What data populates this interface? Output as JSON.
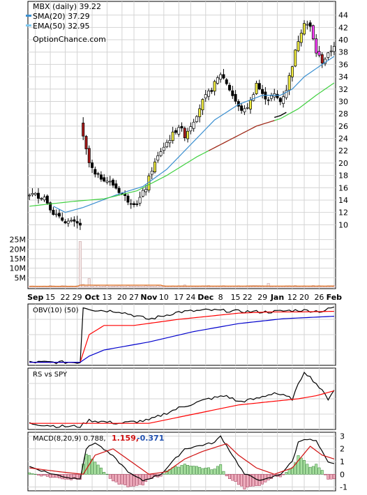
{
  "chart_data": [
    {
      "type": "candlestick",
      "title": "MBX (daily) 39.22",
      "source": "OptionChance.com",
      "legend": [
        {
          "label": "SMA(20) 37.29",
          "color": "#3a8fd0"
        },
        {
          "label": "EMA(50) 32.95",
          "color": "#7ec8f0"
        }
      ],
      "y_ticks": [
        10,
        12,
        14,
        16,
        18,
        20,
        22,
        24,
        26,
        28,
        30,
        32,
        34,
        36,
        38,
        40,
        42,
        44
      ],
      "ylim": [
        8,
        46
      ],
      "x_labels": [
        {
          "label": "Sep",
          "bold": true
        },
        {
          "label": "15",
          "bold": false
        },
        {
          "label": "22",
          "bold": false
        },
        {
          "label": "29",
          "bold": false
        },
        {
          "label": "Oct",
          "bold": true
        },
        {
          "label": "13",
          "bold": false
        },
        {
          "label": "20",
          "bold": false
        },
        {
          "label": "27",
          "bold": false
        },
        {
          "label": "Nov",
          "bold": true
        },
        {
          "label": "10",
          "bold": false
        },
        {
          "label": "17",
          "bold": false
        },
        {
          "label": "24",
          "bold": false
        },
        {
          "label": "Dec",
          "bold": true
        },
        {
          "label": "8",
          "bold": false
        },
        {
          "label": "15",
          "bold": false
        },
        {
          "label": "22",
          "bold": false
        },
        {
          "label": "29",
          "bold": false
        },
        {
          "label": "Jan",
          "bold": true
        },
        {
          "label": "12",
          "bold": false
        },
        {
          "label": "20",
          "bold": false
        },
        {
          "label": "26",
          "bold": false
        },
        {
          "label": "Feb",
          "bold": true
        }
      ],
      "price_anchors": [
        [
          0,
          15
        ],
        [
          5,
          14.5
        ],
        [
          8,
          12
        ],
        [
          10,
          11
        ],
        [
          13,
          10.5
        ],
        [
          15,
          10.2
        ],
        [
          17,
          10
        ],
        [
          18,
          24
        ],
        [
          20,
          20
        ],
        [
          22,
          18
        ],
        [
          25,
          17.5
        ],
        [
          28,
          16.5
        ],
        [
          30,
          15.5
        ],
        [
          33,
          14
        ],
        [
          36,
          13.5
        ],
        [
          39,
          16
        ],
        [
          41,
          19
        ],
        [
          44,
          22
        ],
        [
          47,
          24
        ],
        [
          50,
          26
        ],
        [
          52,
          24.5
        ],
        [
          55,
          27
        ],
        [
          58,
          30
        ],
        [
          61,
          32
        ],
        [
          64,
          34.5
        ],
        [
          66,
          33
        ],
        [
          68,
          31
        ],
        [
          70,
          29
        ],
        [
          72,
          28.5
        ],
        [
          74,
          30
        ],
        [
          76,
          33
        ],
        [
          78,
          31
        ],
        [
          80,
          30.5
        ],
        [
          82,
          31
        ],
        [
          84,
          30
        ],
        [
          86,
          32
        ],
        [
          88,
          36
        ],
        [
          90,
          40
        ],
        [
          92,
          43
        ],
        [
          94,
          42
        ],
        [
          96,
          38
        ],
        [
          98,
          36.5
        ],
        [
          100,
          37.5
        ],
        [
          102,
          39.2
        ]
      ],
      "sma20": {
        "label": "SMA(20)",
        "value": 37.29,
        "anchors": [
          [
            8,
            13
          ],
          [
            12,
            12
          ],
          [
            18,
            12.8
          ],
          [
            30,
            15
          ],
          [
            38,
            16.2
          ],
          [
            46,
            19
          ],
          [
            54,
            23
          ],
          [
            62,
            27
          ],
          [
            70,
            29.5
          ],
          [
            78,
            31
          ],
          [
            84,
            31
          ],
          [
            88,
            32
          ],
          [
            92,
            34
          ],
          [
            98,
            36
          ],
          [
            102,
            37.3
          ]
        ]
      },
      "ema50": {
        "label": "EMA(50)",
        "value": 32.95,
        "anchors": [
          [
            0,
            13
          ],
          [
            15,
            13.8
          ],
          [
            25,
            14.2
          ],
          [
            36,
            15.5
          ],
          [
            46,
            18
          ],
          [
            56,
            21
          ],
          [
            66,
            23.5
          ],
          [
            76,
            26
          ],
          [
            84,
            27.2
          ],
          [
            90,
            28.8
          ],
          [
            96,
            31
          ],
          [
            102,
            33
          ]
        ]
      },
      "volume_ticks": [
        "25M",
        "20M",
        "15M",
        "10M",
        "5M"
      ],
      "volume": {
        "max": 30,
        "spikes": [
          [
            17,
            24
          ],
          [
            18,
            1.5
          ],
          [
            20,
            4.5
          ],
          [
            52,
            1.2
          ],
          [
            80,
            2
          ],
          [
            100,
            0.8
          ]
        ],
        "base": 0.4
      }
    },
    {
      "type": "line",
      "title": "OBV(10) (50)",
      "series": [
        {
          "color": "#000000",
          "anchors": [
            [
              0,
              0.05
            ],
            [
              15,
              0.05
            ],
            [
              17,
              0.05
            ],
            [
              18,
              0.95
            ],
            [
              22,
              0.9
            ],
            [
              30,
              0.88
            ],
            [
              40,
              0.75
            ],
            [
              50,
              0.87
            ],
            [
              60,
              0.9
            ],
            [
              70,
              0.88
            ],
            [
              80,
              0.87
            ],
            [
              90,
              0.9
            ],
            [
              98,
              0.88
            ],
            [
              102,
              0.95
            ]
          ]
        },
        {
          "color": "#ff0000",
          "anchors": [
            [
              0,
              0.05
            ],
            [
              17,
              0.05
            ],
            [
              20,
              0.5
            ],
            [
              25,
              0.65
            ],
            [
              35,
              0.65
            ],
            [
              50,
              0.75
            ],
            [
              60,
              0.8
            ],
            [
              70,
              0.85
            ],
            [
              80,
              0.87
            ],
            [
              90,
              0.87
            ],
            [
              102,
              0.88
            ]
          ]
        },
        {
          "color": "#0000cc",
          "anchors": [
            [
              0,
              0.05
            ],
            [
              17,
              0.05
            ],
            [
              20,
              0.15
            ],
            [
              25,
              0.25
            ],
            [
              40,
              0.38
            ],
            [
              55,
              0.55
            ],
            [
              70,
              0.68
            ],
            [
              85,
              0.76
            ],
            [
              102,
              0.8
            ]
          ]
        }
      ]
    },
    {
      "type": "line",
      "title": "RS vs SPY",
      "series": [
        {
          "color": "#000000",
          "anchors": [
            [
              0,
              0.1
            ],
            [
              10,
              0.05
            ],
            [
              17,
              0.05
            ],
            [
              20,
              0.15
            ],
            [
              30,
              0.1
            ],
            [
              40,
              0.15
            ],
            [
              50,
              0.35
            ],
            [
              60,
              0.5
            ],
            [
              66,
              0.55
            ],
            [
              70,
              0.45
            ],
            [
              76,
              0.5
            ],
            [
              82,
              0.6
            ],
            [
              88,
              0.5
            ],
            [
              92,
              0.95
            ],
            [
              96,
              0.75
            ],
            [
              100,
              0.5
            ],
            [
              102,
              0.65
            ]
          ]
        },
        {
          "color": "#ff0000",
          "anchors": [
            [
              0,
              0.1
            ],
            [
              20,
              0.1
            ],
            [
              40,
              0.1
            ],
            [
              50,
              0.2
            ],
            [
              60,
              0.3
            ],
            [
              70,
              0.4
            ],
            [
              80,
              0.45
            ],
            [
              90,
              0.5
            ],
            [
              96,
              0.55
            ],
            [
              102,
              0.63
            ]
          ]
        }
      ]
    },
    {
      "type": "macd",
      "title": "MACD(8,20,9) 0.788,",
      "signal_label": "1.159,",
      "hist_label": "-0.371",
      "y_ticks": [
        3,
        2,
        1,
        0,
        -1
      ],
      "ylim": [
        -1.3,
        3.3
      ],
      "macd_anchors": [
        [
          0,
          0.6
        ],
        [
          8,
          0
        ],
        [
          14,
          -0.3
        ],
        [
          17,
          -0.3
        ],
        [
          19,
          2
        ],
        [
          22,
          2.5
        ],
        [
          28,
          1.4
        ],
        [
          34,
          0
        ],
        [
          38,
          -0.5
        ],
        [
          44,
          0
        ],
        [
          48,
          1
        ],
        [
          52,
          2
        ],
        [
          56,
          2.2
        ],
        [
          62,
          2.5
        ],
        [
          64,
          3
        ],
        [
          68,
          1.5
        ],
        [
          72,
          0
        ],
        [
          78,
          -0.5
        ],
        [
          84,
          0
        ],
        [
          88,
          1
        ],
        [
          90,
          2.5
        ],
        [
          92,
          2.8
        ],
        [
          96,
          2.6
        ],
        [
          100,
          0.9
        ],
        [
          102,
          0.8
        ]
      ],
      "signal_anchors": [
        [
          0,
          0.5
        ],
        [
          10,
          0.2
        ],
        [
          18,
          0
        ],
        [
          22,
          1.5
        ],
        [
          28,
          2
        ],
        [
          34,
          1
        ],
        [
          40,
          0
        ],
        [
          46,
          0.2
        ],
        [
          52,
          1.2
        ],
        [
          58,
          1.8
        ],
        [
          66,
          2.4
        ],
        [
          70,
          1.5
        ],
        [
          76,
          0.5
        ],
        [
          82,
          0
        ],
        [
          88,
          0.5
        ],
        [
          94,
          2.2
        ],
        [
          98,
          1.5
        ],
        [
          102,
          1.2
        ]
      ]
    }
  ]
}
